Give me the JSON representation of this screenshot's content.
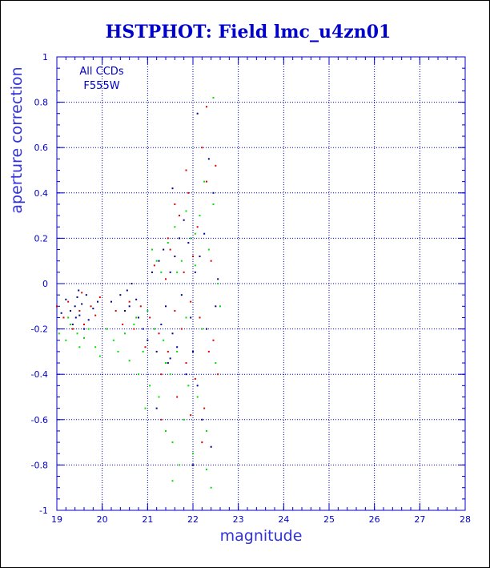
{
  "chart_data": {
    "type": "scatter",
    "title": "HSTPHOT: Field lmc_u4zn01",
    "xlabel": "magnitude",
    "ylabel": "aperture correction",
    "xlim": [
      19,
      28
    ],
    "ylim": [
      -1,
      1
    ],
    "x_ticks": [
      "19",
      "20",
      "21",
      "22",
      "23",
      "24",
      "25",
      "26",
      "27",
      "28"
    ],
    "y_ticks": [
      "1",
      "0.8",
      "0.6",
      "0.4",
      "0.2",
      "0",
      "-0.2",
      "-0.4",
      "-0.6",
      "-0.8",
      "-1"
    ],
    "annotation": [
      "All CCDs",
      "F555W"
    ],
    "grid": true,
    "colors": {
      "axis": "#0000cc",
      "grid": "#0000cc",
      "series": [
        "#000088",
        "#dd0000",
        "#00dd00"
      ]
    },
    "series": [
      {
        "color": "#000088",
        "points": [
          [
            19.1,
            -0.13
          ],
          [
            19.2,
            -0.07
          ],
          [
            19.3,
            -0.12
          ],
          [
            19.35,
            -0.18
          ],
          [
            19.4,
            -0.1
          ],
          [
            19.45,
            -0.06
          ],
          [
            19.5,
            -0.14
          ],
          [
            19.55,
            -0.09
          ],
          [
            19.6,
            -0.2
          ],
          [
            19.65,
            -0.05
          ],
          [
            19.7,
            -0.16
          ],
          [
            19.8,
            -0.11
          ],
          [
            19.9,
            -0.08
          ],
          [
            19.42,
            -0.15
          ],
          [
            19.48,
            -0.03
          ],
          [
            20.2,
            -0.08
          ],
          [
            20.4,
            -0.05
          ],
          [
            20.5,
            -0.12
          ],
          [
            20.55,
            -0.03
          ],
          [
            20.6,
            -0.1
          ],
          [
            20.65,
            0.0
          ],
          [
            20.75,
            -0.07
          ],
          [
            20.8,
            -0.15
          ],
          [
            20.9,
            -0.2
          ],
          [
            21.0,
            -0.25
          ],
          [
            21.1,
            0.05
          ],
          [
            21.2,
            -0.3
          ],
          [
            21.25,
            0.1
          ],
          [
            21.3,
            -0.18
          ],
          [
            21.35,
            0.15
          ],
          [
            21.4,
            -0.1
          ],
          [
            21.45,
            -0.35
          ],
          [
            21.5,
            0.05
          ],
          [
            21.55,
            -0.22
          ],
          [
            21.6,
            0.12
          ],
          [
            21.65,
            -0.28
          ],
          [
            21.7,
            0.2
          ],
          [
            21.75,
            -0.05
          ],
          [
            21.8,
            0.28
          ],
          [
            21.85,
            -0.4
          ],
          [
            21.9,
            0.18
          ],
          [
            21.95,
            -0.15
          ],
          [
            22.0,
            -0.3
          ],
          [
            22.05,
            0.05
          ],
          [
            22.1,
            -0.45
          ],
          [
            22.15,
            0.12
          ],
          [
            22.2,
            -0.6
          ],
          [
            22.25,
            0.22
          ],
          [
            22.3,
            -0.2
          ],
          [
            22.35,
            0.55
          ],
          [
            22.4,
            -0.72
          ],
          [
            22.45,
            0.4
          ],
          [
            22.5,
            -0.1
          ],
          [
            22.55,
            0.02
          ],
          [
            21.55,
            0.42
          ],
          [
            21.2,
            -0.55
          ],
          [
            22.1,
            0.75
          ],
          [
            21.5,
            -0.33
          ],
          [
            22.0,
            -0.8
          ]
        ]
      },
      {
        "color": "#dd0000",
        "points": [
          [
            19.0,
            -0.1
          ],
          [
            19.15,
            -0.15
          ],
          [
            19.25,
            -0.08
          ],
          [
            19.35,
            -0.2
          ],
          [
            19.5,
            -0.12
          ],
          [
            19.6,
            -0.18
          ],
          [
            19.75,
            -0.1
          ],
          [
            19.85,
            -0.14
          ],
          [
            19.95,
            -0.06
          ],
          [
            19.55,
            -0.04
          ],
          [
            20.3,
            -0.12
          ],
          [
            20.45,
            -0.18
          ],
          [
            20.6,
            -0.08
          ],
          [
            20.7,
            -0.2
          ],
          [
            20.85,
            -0.1
          ],
          [
            20.95,
            -0.28
          ],
          [
            21.05,
            -0.15
          ],
          [
            21.15,
            0.08
          ],
          [
            21.25,
            -0.22
          ],
          [
            21.3,
            -0.4
          ],
          [
            21.4,
            0.02
          ],
          [
            21.45,
            -0.3
          ],
          [
            21.5,
            0.15
          ],
          [
            21.6,
            -0.12
          ],
          [
            21.65,
            -0.5
          ],
          [
            21.7,
            0.3
          ],
          [
            21.75,
            -0.2
          ],
          [
            21.8,
            0.05
          ],
          [
            21.85,
            -0.35
          ],
          [
            21.9,
            0.4
          ],
          [
            21.95,
            -0.08
          ],
          [
            22.0,
            0.12
          ],
          [
            22.05,
            -0.42
          ],
          [
            22.1,
            0.25
          ],
          [
            22.15,
            -0.15
          ],
          [
            22.2,
            0.6
          ],
          [
            22.25,
            -0.55
          ],
          [
            22.3,
            0.45
          ],
          [
            22.35,
            -0.3
          ],
          [
            22.4,
            0.1
          ],
          [
            22.45,
            -0.25
          ],
          [
            22.5,
            0.52
          ],
          [
            22.55,
            -0.4
          ],
          [
            21.85,
            0.5
          ],
          [
            22.3,
            0.78
          ],
          [
            21.6,
            0.35
          ],
          [
            21.3,
            -0.6
          ],
          [
            22.2,
            -0.7
          ],
          [
            21.95,
            -0.58
          ],
          [
            21.45,
            0.2
          ]
        ]
      },
      {
        "color": "#00dd00",
        "points": [
          [
            19.05,
            -0.22
          ],
          [
            19.2,
            -0.25
          ],
          [
            19.3,
            -0.18
          ],
          [
            19.45,
            -0.22
          ],
          [
            19.6,
            -0.24
          ],
          [
            19.7,
            -0.2
          ],
          [
            19.85,
            -0.28
          ],
          [
            19.95,
            -0.32
          ],
          [
            19.25,
            -0.15
          ],
          [
            19.5,
            -0.28
          ],
          [
            20.1,
            -0.2
          ],
          [
            20.25,
            -0.25
          ],
          [
            20.35,
            -0.3
          ],
          [
            20.5,
            -0.22
          ],
          [
            20.6,
            -0.34
          ],
          [
            20.7,
            -0.18
          ],
          [
            20.8,
            -0.4
          ],
          [
            20.9,
            -0.3
          ],
          [
            21.0,
            -0.12
          ],
          [
            21.05,
            -0.45
          ],
          [
            21.15,
            -0.2
          ],
          [
            21.2,
            0.1
          ],
          [
            21.25,
            -0.5
          ],
          [
            21.3,
            0.05
          ],
          [
            21.35,
            -0.25
          ],
          [
            21.4,
            -0.65
          ],
          [
            21.45,
            0.18
          ],
          [
            21.5,
            -0.4
          ],
          [
            21.55,
            -0.7
          ],
          [
            21.6,
            0.25
          ],
          [
            21.65,
            -0.3
          ],
          [
            21.7,
            -0.8
          ],
          [
            21.75,
            0.1
          ],
          [
            21.8,
            -0.6
          ],
          [
            21.85,
            0.32
          ],
          [
            21.9,
            -0.45
          ],
          [
            21.95,
            0.2
          ],
          [
            22.0,
            -0.75
          ],
          [
            22.05,
            0.08
          ],
          [
            22.1,
            -0.5
          ],
          [
            22.15,
            0.3
          ],
          [
            22.2,
            -0.2
          ],
          [
            22.25,
            0.45
          ],
          [
            22.3,
            -0.65
          ],
          [
            22.35,
            0.15
          ],
          [
            22.4,
            -0.9
          ],
          [
            22.45,
            0.35
          ],
          [
            22.5,
            -0.35
          ],
          [
            22.55,
            0.0
          ],
          [
            22.6,
            -0.1
          ],
          [
            22.45,
            0.82
          ],
          [
            21.55,
            -0.87
          ],
          [
            21.4,
            -0.35
          ],
          [
            22.3,
            -0.82
          ],
          [
            20.95,
            -0.55
          ],
          [
            21.1,
            0.15
          ],
          [
            21.85,
            -0.15
          ],
          [
            22.05,
            0.22
          ],
          [
            21.65,
            0.05
          ],
          [
            20.75,
            -0.15
          ]
        ]
      }
    ]
  }
}
